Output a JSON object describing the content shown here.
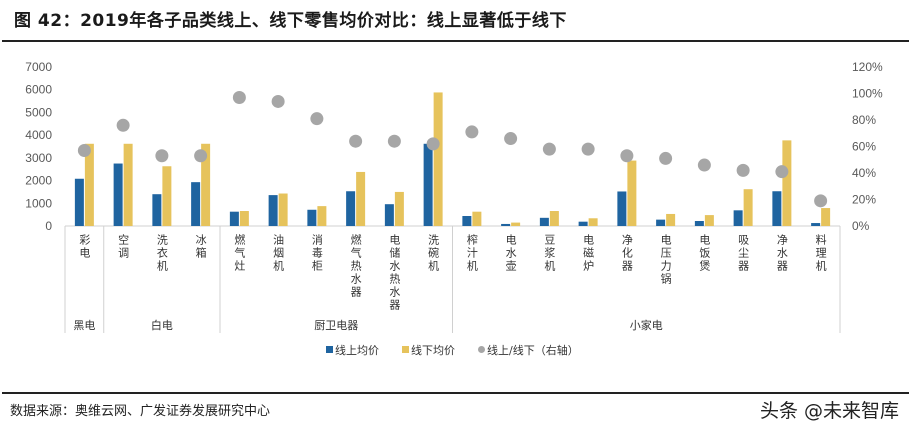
{
  "title": "图 42：2019年各子品类线上、线下零售均价对比：线上显著低于线下",
  "source": "数据来源：奥维云网、广发证券发展研究中心",
  "watermark": "头条 @未来智库",
  "chart_data": {
    "type": "bar",
    "title": "",
    "groups": [
      {
        "name": "黑电",
        "count": 1
      },
      {
        "name": "白电",
        "count": 3
      },
      {
        "name": "厨卫电器",
        "count": 6
      },
      {
        "name": "小家电",
        "count": 10
      }
    ],
    "categories": [
      "彩电",
      "空调",
      "洗衣机",
      "冰箱",
      "燃气灶",
      "油烟机",
      "消毒柜",
      "燃气热水器",
      "电储水热水器",
      "洗碗机",
      "榨汁机",
      "电水壶",
      "豆浆机",
      "电磁炉",
      "净化器",
      "电压力锅",
      "电饭煲",
      "吸尘器",
      "净水器",
      "料理机"
    ],
    "series": [
      {
        "name": "线上均价",
        "type": "bar",
        "axis": "left",
        "color": "#1f64a0",
        "values": [
          2080,
          2750,
          1400,
          1930,
          630,
          1360,
          715,
          1530,
          960,
          3620,
          440,
          90,
          360,
          190,
          1520,
          280,
          220,
          690,
          1530,
          130
        ]
      },
      {
        "name": "线下均价",
        "type": "bar",
        "axis": "left",
        "color": "#e6c35c",
        "values": [
          3620,
          3620,
          2630,
          3620,
          660,
          1430,
          875,
          2380,
          1500,
          5880,
          630,
          150,
          660,
          340,
          2880,
          530,
          480,
          1620,
          3770,
          790
        ]
      },
      {
        "name": "线上/线下（右轴）",
        "type": "scatter",
        "axis": "right",
        "color": "#a6a6a6",
        "values": [
          57,
          76,
          53,
          53,
          97,
          94,
          81,
          64,
          64,
          62,
          71,
          66,
          58,
          58,
          53,
          51,
          46,
          42,
          41,
          19
        ]
      }
    ],
    "y_left": {
      "range": [
        0,
        7000
      ],
      "ticks": [
        "0",
        "1000",
        "2000",
        "3000",
        "4000",
        "5000",
        "6000",
        "7000"
      ]
    },
    "y_right": {
      "range": [
        0,
        120
      ],
      "unit": "%",
      "ticks": [
        "0%",
        "20%",
        "40%",
        "60%",
        "80%",
        "100%",
        "120%"
      ]
    },
    "grid": false,
    "legend": "bottom"
  }
}
